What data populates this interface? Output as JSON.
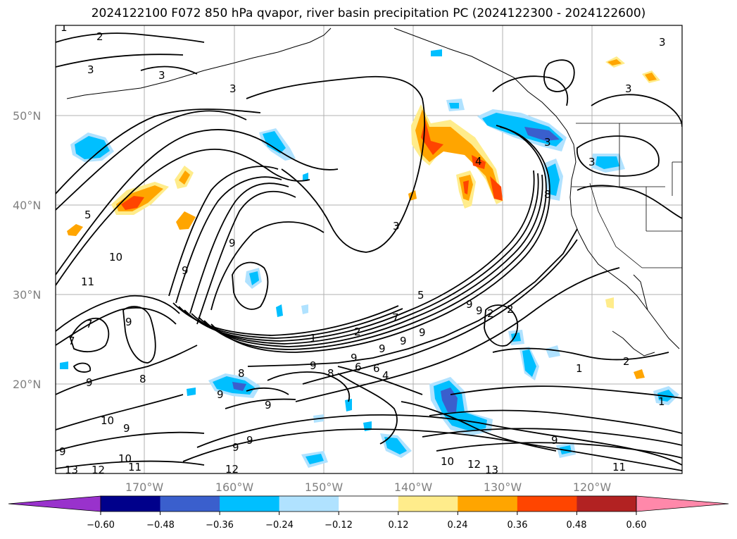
{
  "title": "2024122100 F072 850 hPa qvapor, river basin precipitation PC (2024122300 - 2024122600)",
  "lat_labels": [
    "50°N",
    "40°N",
    "30°N",
    "20°N"
  ],
  "lon_labels": [
    "170°W",
    "160°W",
    "150°W",
    "140°W",
    "130°W",
    "120°W"
  ],
  "colorbar": {
    "ticks": [
      "−0.60",
      "−0.48",
      "−0.36",
      "−0.24",
      "−0.12",
      "0.12",
      "0.24",
      "0.36",
      "0.48",
      "0.60"
    ],
    "colors": [
      "#9932cc",
      "#00008b",
      "#3a5fcd",
      "#00bfff",
      "#b0e2ff",
      "#ffffff",
      "#ffec8b",
      "#ffa500",
      "#ff4500",
      "#b22222",
      "#ff88aa"
    ]
  },
  "contour_labels": [
    "1",
    "2",
    "3",
    "3",
    "3",
    "3",
    "3",
    "3",
    "3",
    "4",
    "5",
    "3",
    "9",
    "10",
    "11",
    "7",
    "9",
    "7",
    "8",
    "9",
    "8",
    "9",
    "9",
    "10",
    "9",
    "9",
    "10",
    "11",
    "13",
    "12",
    "12",
    "10",
    "12",
    "13",
    "11",
    "9",
    "1",
    "2",
    "5",
    "9",
    "9",
    "9",
    "6",
    "4",
    "2",
    "2",
    "1",
    "2",
    "8",
    "9",
    "6",
    "7",
    "8",
    "1",
    "9",
    "9",
    "9",
    "9",
    "9",
    "9"
  ]
}
